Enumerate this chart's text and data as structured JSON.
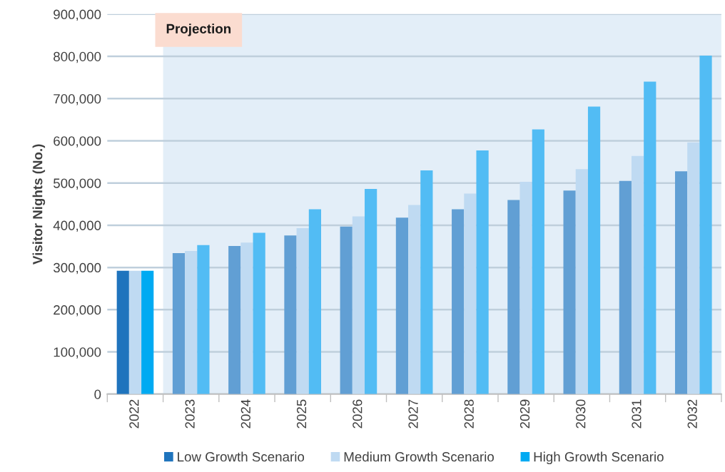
{
  "chart_data": {
    "type": "bar",
    "ylabel": "Visitor Nights (No.)",
    "categories": [
      "2022",
      "2023",
      "2024",
      "2025",
      "2026",
      "2027",
      "2028",
      "2029",
      "2030",
      "2031",
      "2032"
    ],
    "series": [
      {
        "name": "Low Growth Scenario",
        "color": "#1f74bd",
        "colors": [
          "#1f74bd",
          "#619fd4",
          "#619fd4",
          "#619fd4",
          "#619fd4",
          "#619fd4",
          "#619fd4",
          "#619fd4",
          "#619fd4",
          "#619fd4",
          "#619fd4"
        ],
        "values": [
          292000,
          334000,
          351000,
          376000,
          397000,
          418000,
          438000,
          460000,
          482000,
          505000,
          528000
        ]
      },
      {
        "name": "Medium Growth Scenario",
        "color": "#bfdaf2",
        "colors": [
          "#bfdaf2",
          "#bfdaf2",
          "#bfdaf2",
          "#bfdaf2",
          "#bfdaf2",
          "#bfdaf2",
          "#bfdaf2",
          "#bfdaf2",
          "#bfdaf2",
          "#bfdaf2",
          "#bfdaf2"
        ],
        "values": [
          292000,
          339000,
          359000,
          393000,
          421000,
          448000,
          475000,
          503000,
          533000,
          564000,
          596000
        ]
      },
      {
        "name": "High Growth Scenario",
        "color": "#00aaf2",
        "colors": [
          "#00aaf2",
          "#52bcf4",
          "#52bcf4",
          "#52bcf4",
          "#52bcf4",
          "#52bcf4",
          "#52bcf4",
          "#52bcf4",
          "#52bcf4",
          "#52bcf4",
          "#52bcf4"
        ],
        "values": [
          292000,
          353000,
          382000,
          438000,
          486000,
          530000,
          577000,
          627000,
          681000,
          740000,
          802000
        ]
      }
    ],
    "ylim": [
      0,
      900000
    ],
    "yticks": [
      {
        "value": 0,
        "label": "0"
      },
      {
        "value": 100000,
        "label": "100,000"
      },
      {
        "value": 200000,
        "label": "200,000"
      },
      {
        "value": 300000,
        "label": "300,000"
      },
      {
        "value": 400000,
        "label": "400,000"
      },
      {
        "value": 500000,
        "label": "500,000"
      },
      {
        "value": 600000,
        "label": "600,000"
      },
      {
        "value": 700000,
        "label": "700,000"
      },
      {
        "value": 800000,
        "label": "800,000"
      },
      {
        "value": 900000,
        "label": "900,000"
      }
    ],
    "bands": [
      {
        "axis": "x",
        "from": "2023",
        "to": "2032",
        "label": "Projection",
        "color": "#e3eef8"
      }
    ],
    "grid": "y",
    "legend": "bottom"
  }
}
